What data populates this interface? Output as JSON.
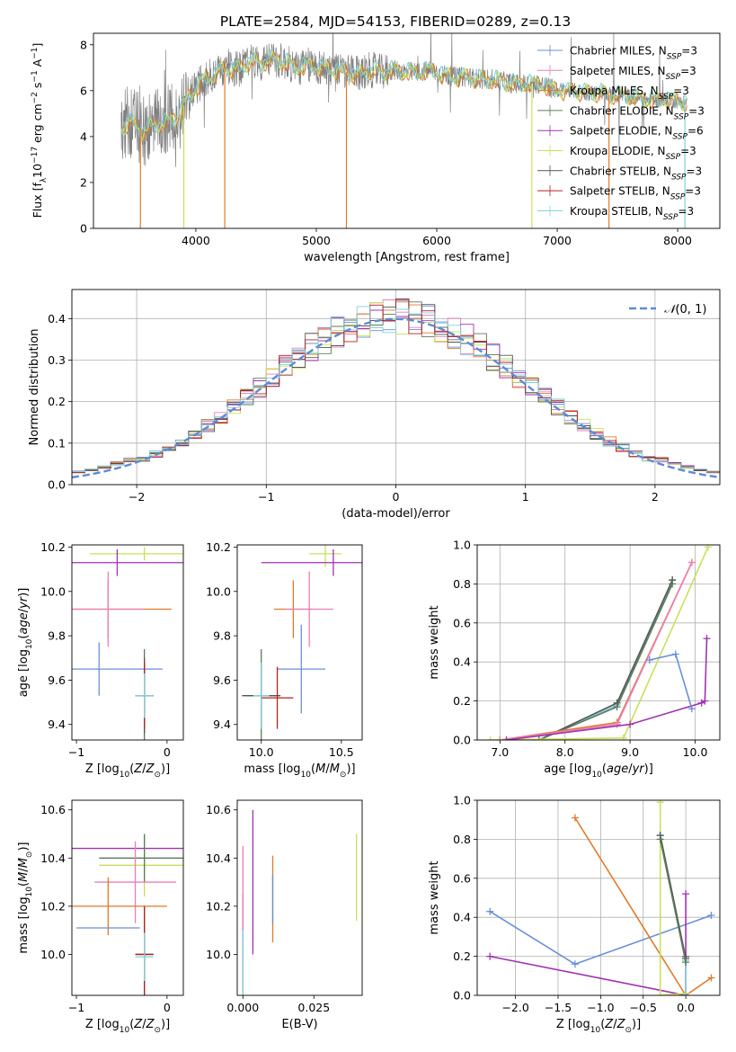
{
  "figure_title": "PLATE=2584, MJD=54153, FIBERID=0289, z=0.13",
  "colors": {
    "chabrier_miles": "#6a8fd6",
    "salpeter_miles": "#e97fb8",
    "kroupa_miles": "#e07a2c",
    "chabrier_elodie": "#5a7a5a",
    "salpeter_elodie": "#a033b0",
    "kroupa_elodie": "#c8e05a",
    "chabrier_stelib": "#555555",
    "salpeter_stelib": "#b22222",
    "kroupa_stelib": "#7fd0dc",
    "observed": "#808080",
    "gaussian": "#5b8bd8",
    "grid": "#b0b0b0"
  },
  "chart_data": [
    {
      "id": "spectrum",
      "type": "line",
      "xlabel": "wavelength [Angstrom, rest frame]",
      "ylabel": "Flux [f_λ 10^-17 erg cm^-2 s^-1 A^-1]",
      "xlim": [
        3150,
        8350
      ],
      "ylim": [
        0,
        8.5
      ],
      "xticks": [
        4000,
        5000,
        6000,
        7000,
        8000
      ],
      "yticks": [
        0,
        2,
        4,
        6,
        8
      ],
      "grid": false,
      "legend_position": "right",
      "legend": [
        {
          "label": "Chabrier MILES, N_SSP=3",
          "text": "Chabrier MILES, N",
          "sub": "SSP",
          "tail": "=3",
          "color_key": "chabrier_miles"
        },
        {
          "label": "Salpeter MILES, N_SSP=3",
          "text": "Salpeter MILES, N",
          "sub": "SSP",
          "tail": "=3",
          "color_key": "salpeter_miles"
        },
        {
          "label": "Kroupa MILES, N_SSP=3",
          "text": "Kroupa MILES, N",
          "sub": "SSP",
          "tail": "=3",
          "color_key": "kroupa_miles"
        },
        {
          "label": "Chabrier ELODIE, N_SSP=3",
          "text": "Chabrier ELODIE, N",
          "sub": "SSP",
          "tail": "=3",
          "color_key": "chabrier_elodie"
        },
        {
          "label": "Salpeter ELODIE, N_SSP=6",
          "text": "Salpeter ELODIE, N",
          "sub": "SSP",
          "tail": "=6",
          "color_key": "salpeter_elodie"
        },
        {
          "label": "Kroupa ELODIE, N_SSP=3",
          "text": "Kroupa ELODIE, N",
          "sub": "SSP",
          "tail": "=3",
          "color_key": "kroupa_elodie"
        },
        {
          "label": "Chabrier STELIB, N_SSP=3",
          "text": "Chabrier STELIB, N",
          "sub": "SSP",
          "tail": "=3",
          "color_key": "chabrier_stelib"
        },
        {
          "label": "Salpeter STELIB, N_SSP=3",
          "text": "Salpeter STELIB, N",
          "sub": "SSP",
          "tail": "=3",
          "color_key": "salpeter_stelib"
        },
        {
          "label": "Kroupa STELIB, N_SSP=3",
          "text": "Kroupa STELIB, N",
          "sub": "SSP",
          "tail": "=3",
          "color_key": "kroupa_stelib"
        }
      ],
      "model_continuum": [
        [
          3380,
          4.3
        ],
        [
          3450,
          4.7
        ],
        [
          3550,
          4.2
        ],
        [
          3650,
          4.5
        ],
        [
          3750,
          4.6
        ],
        [
          3850,
          4.9
        ],
        [
          3950,
          5.8
        ],
        [
          4050,
          6.4
        ],
        [
          4150,
          6.7
        ],
        [
          4250,
          7.0
        ],
        [
          4350,
          6.9
        ],
        [
          4450,
          7.3
        ],
        [
          4550,
          7.2
        ],
        [
          4650,
          7.4
        ],
        [
          4750,
          7.2
        ],
        [
          4850,
          7.0
        ],
        [
          4950,
          7.1
        ],
        [
          5050,
          7.0
        ],
        [
          5150,
          6.9
        ],
        [
          5250,
          6.8
        ],
        [
          5350,
          6.7
        ],
        [
          5450,
          6.9
        ],
        [
          5550,
          6.8
        ],
        [
          5650,
          6.9
        ],
        [
          5750,
          6.8
        ],
        [
          5850,
          6.8
        ],
        [
          5950,
          6.9
        ],
        [
          6050,
          6.7
        ],
        [
          6150,
          6.6
        ],
        [
          6250,
          6.6
        ],
        [
          6350,
          6.5
        ],
        [
          6450,
          6.5
        ],
        [
          6550,
          6.4
        ],
        [
          6650,
          6.3
        ],
        [
          6750,
          6.3
        ],
        [
          6850,
          6.3
        ],
        [
          6950,
          6.1
        ],
        [
          7050,
          6.0
        ],
        [
          7150,
          6.0
        ],
        [
          7250,
          5.9
        ],
        [
          7350,
          5.9
        ],
        [
          7450,
          5.8
        ],
        [
          7550,
          5.8
        ],
        [
          7650,
          5.7
        ],
        [
          7750,
          5.6
        ],
        [
          7850,
          5.6
        ],
        [
          7950,
          5.6
        ],
        [
          8050,
          5.5
        ]
      ],
      "model_dropouts": [
        {
          "x": 3540,
          "series": "kroupa_miles"
        },
        {
          "x": 3900,
          "series": "kroupa_elodie"
        },
        {
          "x": 4240,
          "series": "kroupa_miles"
        },
        {
          "x": 5250,
          "series": "kroupa_miles"
        },
        {
          "x": 6790,
          "series": "kroupa_elodie"
        },
        {
          "x": 7430,
          "series": "kroupa_miles"
        },
        {
          "x": 8060,
          "series": "kroupa_stelib"
        }
      ]
    },
    {
      "id": "residuals",
      "type": "bar",
      "xlabel": "(data-model)/error",
      "ylabel": "Normed distribution",
      "xlim": [
        -2.5,
        2.5
      ],
      "ylim": [
        0,
        0.47
      ],
      "xticks": [
        -2,
        -1,
        0,
        1,
        2
      ],
      "yticks": [
        0.0,
        0.1,
        0.2,
        0.3,
        0.4
      ],
      "grid": true,
      "legend_position": "upper right",
      "legend": [
        {
          "label": "𝒩(0, 1)",
          "color_key": "gaussian"
        }
      ],
      "bin_width": 0.1,
      "histogram_series_colors": [
        "chabrier_miles",
        "salpeter_miles",
        "kroupa_miles",
        "chabrier_elodie",
        "salpeter_elodie",
        "kroupa_elodie",
        "chabrier_stelib",
        "salpeter_stelib",
        "kroupa_stelib"
      ]
    },
    {
      "id": "age_vs_Z",
      "type": "scatter",
      "xlabel": "Z [log10(Z/Z⊙)]",
      "ylabel": "age  [log10(age/yr)]",
      "xlim": [
        -1.05,
        0.18
      ],
      "ylim": [
        9.33,
        10.21
      ],
      "xticks": [
        -1,
        0
      ],
      "yticks": [
        9.4,
        9.6,
        9.8,
        10.0,
        10.2
      ],
      "grid": false,
      "points": [
        {
          "x": -0.65,
          "xerr": 0.7,
          "y": 9.92,
          "yerr": 0.13,
          "color_key": "kroupa_miles"
        },
        {
          "x": -0.65,
          "xerr": 0.4,
          "y": 9.92,
          "yerr": 0.17,
          "color_key": "salpeter_miles"
        },
        {
          "x": -0.75,
          "xerr": 0.7,
          "y": 9.65,
          "yerr": 0.12,
          "color_key": "chabrier_miles"
        },
        {
          "x": -0.25,
          "xerr": 0.6,
          "y": 10.17,
          "yerr": 0.03,
          "color_key": "kroupa_elodie"
        },
        {
          "x": -0.55,
          "xerr": 1.0,
          "y": 10.13,
          "yerr": 0.06,
          "color_key": "salpeter_elodie"
        },
        {
          "x": -0.25,
          "xerr": 0.1,
          "y": 9.53,
          "yerr": 0.21,
          "color_key": "chabrier_elodie"
        },
        {
          "x": -0.25,
          "xerr": 0.1,
          "y": 9.53,
          "yerr": 0.17,
          "color_key": "chabrier_stelib"
        },
        {
          "x": -0.25,
          "xerr": 0.1,
          "y": 9.53,
          "yerr": 0.15,
          "color_key": "salpeter_stelib"
        },
        {
          "x": -0.25,
          "xerr": 0.1,
          "y": 9.53,
          "yerr": 0.1,
          "color_key": "kroupa_stelib"
        }
      ]
    },
    {
      "id": "age_vs_mass",
      "type": "scatter",
      "xlabel": "mass [log10(M/M⊙)]",
      "ylabel": "",
      "xlim": [
        9.85,
        10.63
      ],
      "ylim": [
        9.33,
        10.21
      ],
      "xticks": [
        10.0,
        10.5
      ],
      "yticks": [
        9.4,
        9.6,
        9.8,
        10.0,
        10.2
      ],
      "grid": false,
      "points": [
        {
          "x": 10.2,
          "xerr": 0.12,
          "y": 9.92,
          "yerr": 0.13,
          "color_key": "kroupa_miles"
        },
        {
          "x": 10.3,
          "xerr": 0.15,
          "y": 9.92,
          "yerr": 0.17,
          "color_key": "salpeter_miles"
        },
        {
          "x": 10.25,
          "xerr": 0.15,
          "y": 9.65,
          "yerr": 0.2,
          "color_key": "chabrier_miles"
        },
        {
          "x": 10.4,
          "xerr": 0.1,
          "y": 10.17,
          "yerr": 0.06,
          "color_key": "kroupa_elodie"
        },
        {
          "x": 10.45,
          "xerr": 0.45,
          "y": 10.13,
          "yerr": 0.06,
          "color_key": "salpeter_elodie"
        },
        {
          "x": 10.0,
          "xerr": 0.1,
          "y": 9.53,
          "yerr": 0.21,
          "color_key": "chabrier_elodie"
        },
        {
          "x": 10.0,
          "xerr": 0.12,
          "y": 9.53,
          "yerr": 0.15,
          "color_key": "chabrier_stelib"
        },
        {
          "x": 10.1,
          "xerr": 0.1,
          "y": 9.52,
          "yerr": 0.14,
          "color_key": "salpeter_stelib"
        },
        {
          "x": 10.0,
          "xerr": 0.05,
          "y": 9.53,
          "yerr": 0.15,
          "color_key": "kroupa_stelib"
        }
      ]
    },
    {
      "id": "mass_weight_vs_age",
      "type": "line",
      "xlabel": "age  [log10(age/yr)]",
      "ylabel": "mass weight",
      "xlim": [
        6.65,
        10.38
      ],
      "ylim": [
        0,
        1.0
      ],
      "xticks": [
        7,
        8,
        9,
        10
      ],
      "yticks": [
        0.0,
        0.2,
        0.4,
        0.6,
        0.8,
        1.0
      ],
      "grid": true,
      "series": [
        {
          "color_key": "kroupa_stelib",
          "x": [
            7.6,
            8.8,
            9.65
          ],
          "y": [
            0.0,
            0.18,
            0.82
          ]
        },
        {
          "color_key": "chabrier_stelib",
          "x": [
            7.6,
            8.8,
            9.65
          ],
          "y": [
            0.0,
            0.19,
            0.82
          ]
        },
        {
          "color_key": "chabrier_elodie",
          "x": [
            7.6,
            8.8,
            9.65
          ],
          "y": [
            0.0,
            0.17,
            0.8
          ]
        },
        {
          "color_key": "kroupa_miles",
          "x": [
            7.0,
            8.8,
            9.95
          ],
          "y": [
            0.0,
            0.09,
            0.91
          ]
        },
        {
          "color_key": "salpeter_miles",
          "x": [
            7.0,
            8.8,
            9.95
          ],
          "y": [
            0.0,
            0.08,
            0.91
          ]
        },
        {
          "color_key": "kroupa_elodie",
          "x": [
            6.85,
            8.9,
            10.2
          ],
          "y": [
            0.0,
            0.01,
            0.99
          ]
        },
        {
          "color_key": "salpeter_elodie",
          "x": [
            7.1,
            9.0,
            10.1,
            10.15,
            10.18
          ],
          "y": [
            0.0,
            0.08,
            0.19,
            0.2,
            0.52
          ]
        },
        {
          "color_key": "chabrier_miles",
          "x": [
            9.3,
            9.7,
            9.95
          ],
          "y": [
            0.41,
            0.44,
            0.16
          ]
        }
      ]
    },
    {
      "id": "mass_vs_Z",
      "type": "scatter",
      "xlabel": "Z [log10(Z/Z⊙)]",
      "ylabel": "mass [log10(M/M⊙)]",
      "xlim": [
        -1.05,
        0.18
      ],
      "ylim": [
        9.83,
        10.64
      ],
      "xticks": [
        -1,
        0
      ],
      "yticks": [
        10.0,
        10.2,
        10.4,
        10.6
      ],
      "grid": false,
      "points": [
        {
          "x": -0.55,
          "xerr": 0.95,
          "y": 10.44,
          "yerr": 0.0,
          "color_key": "salpeter_elodie"
        },
        {
          "x": -0.25,
          "xerr": 0.5,
          "y": 10.37,
          "yerr": 0.13,
          "color_key": "kroupa_elodie"
        },
        {
          "x": -0.25,
          "xerr": 0.5,
          "y": 10.4,
          "yerr": 0.1,
          "color_key": "chabrier_elodie"
        },
        {
          "x": -0.35,
          "xerr": 0.45,
          "y": 10.3,
          "yerr": 0.17,
          "color_key": "salpeter_miles"
        },
        {
          "x": -0.65,
          "xerr": 0.65,
          "y": 10.2,
          "yerr": 0.12,
          "color_key": "kroupa_miles"
        },
        {
          "x": -0.65,
          "xerr": 0.35,
          "y": 10.11,
          "yerr": 0.0,
          "color_key": "chabrier_miles"
        },
        {
          "x": -0.25,
          "xerr": 0.1,
          "y": 10.0,
          "yerr": 0.2,
          "color_key": "chabrier_stelib"
        },
        {
          "x": -0.25,
          "xerr": 0.1,
          "y": 10.0,
          "yerr": 0.2,
          "color_key": "salpeter_stelib"
        },
        {
          "x": -0.25,
          "xerr": 0.1,
          "y": 9.99,
          "yerr": 0.1,
          "color_key": "kroupa_stelib"
        }
      ]
    },
    {
      "id": "mass_vs_ebv",
      "type": "scatter",
      "xlabel": "E(B-V)",
      "ylabel": "",
      "xlim": [
        -0.002,
        0.042
      ],
      "ylim": [
        9.83,
        10.64
      ],
      "xticks": [
        0.0,
        0.025
      ],
      "xticklabels": [
        "0.000",
        "0.025"
      ],
      "yticks": [
        10.0,
        10.2,
        10.4,
        10.6
      ],
      "grid": false,
      "points": [
        {
          "x": 0.0,
          "y": 10.05,
          "yerr": 0.2,
          "color_key": "salpeter_stelib"
        },
        {
          "x": 0.0,
          "y": 10.05,
          "yerr": 0.4,
          "color_key": "salpeter_miles"
        },
        {
          "x": 0.0,
          "y": 9.95,
          "yerr": 0.15,
          "color_key": "kroupa_stelib"
        },
        {
          "x": 0.0035,
          "y": 10.3,
          "yerr": 0.3,
          "color_key": "salpeter_elodie"
        },
        {
          "x": 0.0105,
          "y": 10.23,
          "yerr": 0.18,
          "color_key": "kroupa_miles"
        },
        {
          "x": 0.0105,
          "y": 10.23,
          "yerr": 0.1,
          "color_key": "chabrier_miles"
        },
        {
          "x": 0.04,
          "y": 10.32,
          "yerr": 0.18,
          "color_key": "kroupa_elodie"
        }
      ]
    },
    {
      "id": "mass_weight_vs_Z",
      "type": "line",
      "xlabel": "Z [log10(Z/Z⊙)]",
      "ylabel": "mass weight",
      "xlim": [
        -2.45,
        0.4
      ],
      "ylim": [
        0,
        1.0
      ],
      "xticks": [
        -2.0,
        -1.5,
        -1.0,
        -0.5,
        0.0
      ],
      "yticks": [
        0.0,
        0.2,
        0.4,
        0.6,
        0.8,
        1.0
      ],
      "grid": true,
      "series": [
        {
          "color_key": "chabrier_miles",
          "x": [
            -2.3,
            -1.3,
            0.3
          ],
          "y": [
            0.43,
            0.16,
            0.41
          ]
        },
        {
          "color_key": "kroupa_miles",
          "x": [
            -1.3,
            0.0,
            0.3
          ],
          "y": [
            0.91,
            0.0,
            0.09
          ]
        },
        {
          "color_key": "salpeter_elodie",
          "x": [
            -2.3,
            0.0,
            0.0,
            0.0
          ],
          "y": [
            0.2,
            0.0,
            0.52,
            0.2
          ]
        },
        {
          "color_key": "kroupa_elodie",
          "x": [
            -0.3,
            -0.3,
            0.0
          ],
          "y": [
            0.99,
            0.0,
            0.01
          ]
        },
        {
          "color_key": "kroupa_stelib",
          "x": [
            -0.3,
            0.0,
            0.0
          ],
          "y": [
            0.82,
            0.18,
            0.0
          ]
        },
        {
          "color_key": "chabrier_stelib",
          "x": [
            -0.3,
            0.0
          ],
          "y": [
            0.82,
            0.19
          ]
        },
        {
          "color_key": "chabrier_elodie",
          "x": [
            -0.3,
            0.0
          ],
          "y": [
            0.8,
            0.17
          ]
        }
      ]
    }
  ]
}
